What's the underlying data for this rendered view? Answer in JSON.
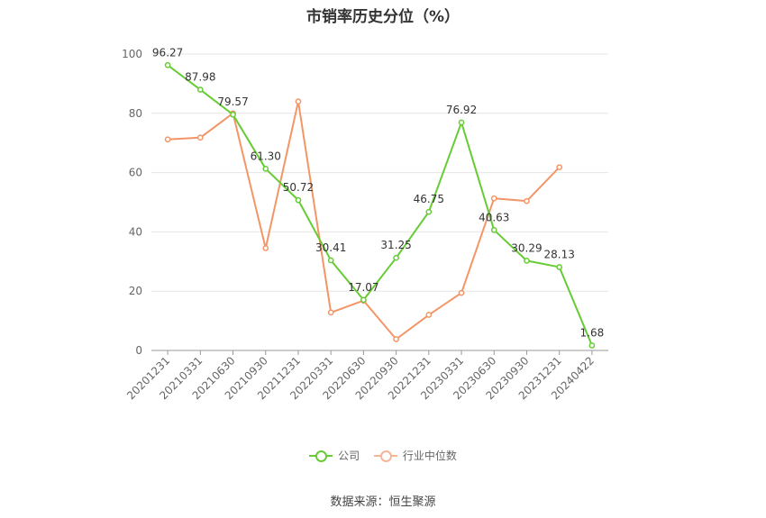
{
  "chart_data": {
    "type": "line",
    "title": "市销率历史分位（%）",
    "categories": [
      "20201231",
      "20210331",
      "20210630",
      "20210930",
      "20211231",
      "20220331",
      "20220630",
      "20220930",
      "20221231",
      "20230331",
      "20230630",
      "20230930",
      "20231231",
      "20240422"
    ],
    "ylim": [
      0,
      100
    ],
    "yticks": [
      0,
      20,
      40,
      60,
      80,
      100
    ],
    "grid": true,
    "legend_position": "bottom",
    "series": [
      {
        "name": "公司",
        "color": "#66cc33",
        "values": [
          96.27,
          87.98,
          79.57,
          61.3,
          50.72,
          30.41,
          17.07,
          31.25,
          46.75,
          76.92,
          40.63,
          30.29,
          28.13,
          1.68
        ],
        "labels": [
          "96.27",
          "87.98",
          "79.57",
          "61.30",
          "50.72",
          "30.41",
          "17.07",
          "31.25",
          "46.75",
          "76.92",
          "40.63",
          "30.29",
          "28.13",
          "1.68"
        ]
      },
      {
        "name": "行业中位数",
        "color": "#f39566",
        "values": [
          71.2,
          71.8,
          80.0,
          34.5,
          84.0,
          12.8,
          16.8,
          3.8,
          12.0,
          19.4,
          51.3,
          50.4,
          61.8,
          null
        ]
      }
    ]
  },
  "source": "数据来源：恒生聚源"
}
